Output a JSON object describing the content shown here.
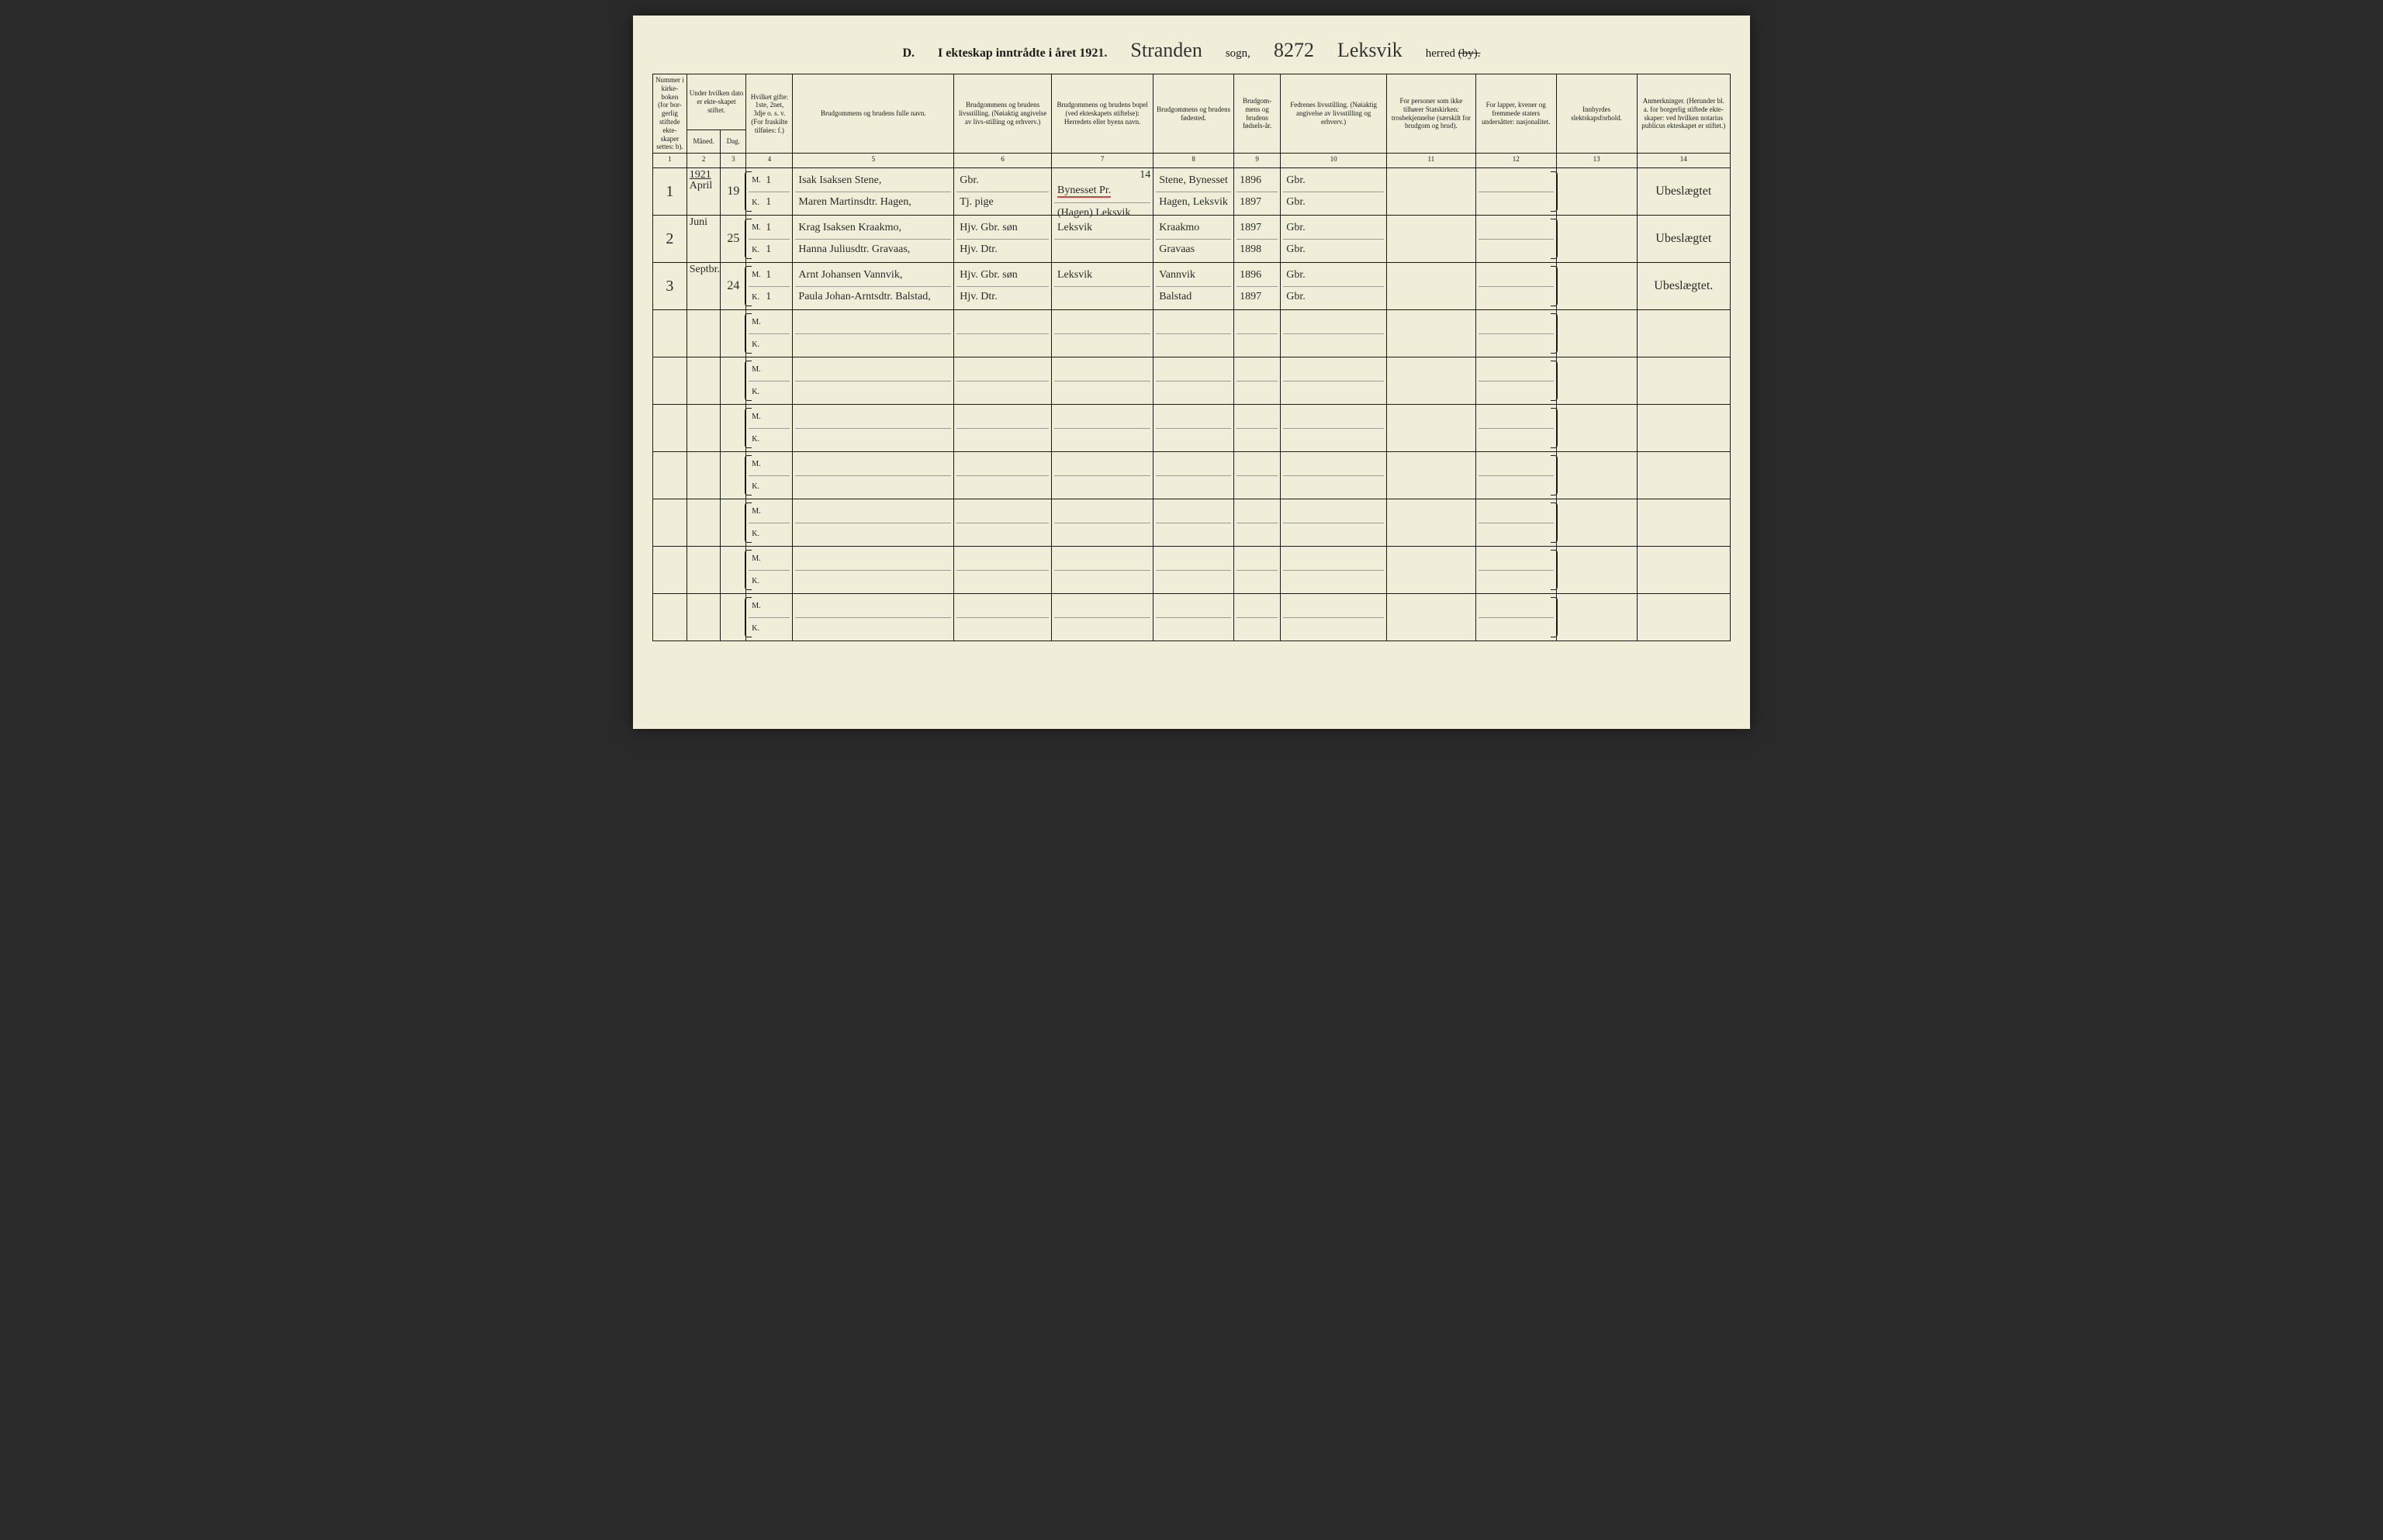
{
  "title": {
    "section_letter": "D.",
    "printed": "I ekteskap inntrådte i året 192",
    "year_suffix": "1.",
    "sogn_name": "Stranden",
    "sogn_label": "sogn,",
    "page_number": "8272",
    "herred_name": "Leksvik",
    "herred_label": "herred",
    "by_label": "(by)."
  },
  "columns": {
    "c1": "Nummer i kirke-boken (for bor-gerlig stiftede ekte-skaper settes: b).",
    "c2": "Under hvilken dato er ekte-skapet stiftet.",
    "c2a": "Måned.",
    "c2b": "Dag.",
    "c3": "Hvilket gifte: 1ste, 2net, 3dje o. s. v. (For fraskilte tilføies: f.)",
    "c4": "Brudgommens og brudens fulle navn.",
    "c5": "Brudgommens og brudens livsstilling. (Nøiaktig angivelse av livs-stilling og erhverv.)",
    "c6": "Brudgommens og brudens bopel (ved ekteskapets stiftelse): Herredets eller byens navn.",
    "c7": "Brudgommens og brudens fødested.",
    "c8": "Brudgom-mens og brudens fødsels-år.",
    "c9": "Fedrenes livsstilling. (Nøiaktig angivelse av livsstilling og erhverv.)",
    "c10": "For personer som ikke tilhører Statskirken: trosbekjennelse (særskilt for brudgom og brud).",
    "c11": "For lapper, kvener og fremmede staters undersåtter: nasjonalitet.",
    "c12": "Innbyrdes slektskapsforhold.",
    "c13": "Anmerkninger. (Herunder bl. a. for borgerlig stiftede ekte-skaper: ved hvilken notarius publicus ekteskapet er stiftet.)"
  },
  "colnums": [
    "1",
    "2",
    "3",
    "4",
    "5",
    "6",
    "7",
    "8",
    "9",
    "10",
    "11",
    "12",
    "13",
    "14"
  ],
  "rows": [
    {
      "num": "1",
      "year_note": "1921",
      "month": "April",
      "day": "19",
      "m_gifte": "1",
      "k_gifte": "1",
      "m_name": "Isak Isaksen Stene,",
      "k_name": "Maren Martinsdtr. Hagen,",
      "m_livs": "Gbr.",
      "k_livs": "Tj. pige",
      "c6_note": "14",
      "m_bopel": "Bynesset Pr.",
      "k_bopel": "(Hagen) Leksvik",
      "m_fodested": "Stene, Bynesset",
      "k_fodested": "Hagen, Leksvik",
      "m_year": "1896",
      "k_year": "1897",
      "m_fedre": "Gbr.",
      "k_fedre": "Gbr.",
      "anm": "Ubeslægtet"
    },
    {
      "num": "2",
      "month": "Juni",
      "day": "25",
      "m_gifte": "1",
      "k_gifte": "1",
      "m_name": "Krag Isaksen Kraakmo,",
      "k_name": "Hanna Juliusdtr. Gravaas,",
      "m_livs": "Hjv. Gbr. søn",
      "k_livs": "Hjv. Dtr.",
      "m_bopel": "Leksvik",
      "k_bopel": "",
      "m_fodested": "Kraakmo",
      "k_fodested": "Gravaas",
      "m_year": "1897",
      "k_year": "1898",
      "m_fedre": "Gbr.",
      "k_fedre": "Gbr.",
      "anm": "Ubeslægtet"
    },
    {
      "num": "3",
      "month": "Septbr.",
      "day": "24",
      "m_gifte": "1",
      "k_gifte": "1",
      "m_name": "Arnt Johansen Vannvik,",
      "k_name": "Paula Johan-Arntsdtr. Balstad,",
      "m_livs": "Hjv. Gbr. søn",
      "k_livs": "Hjv. Dtr.",
      "m_bopel": "Leksvik",
      "k_bopel": "",
      "m_fodested": "Vannvik",
      "k_fodested": "Balstad",
      "m_year": "1896",
      "k_year": "1897",
      "m_fedre": "Gbr.",
      "k_fedre": "Gbr.",
      "anm": "Ubeslægtet."
    },
    {},
    {},
    {},
    {},
    {},
    {},
    {}
  ],
  "mk": {
    "m": "M.",
    "k": "K."
  },
  "widths": {
    "c1": 40,
    "c2a": 40,
    "c2b": 30,
    "c3": 55,
    "c4": 190,
    "c5": 115,
    "c6": 120,
    "c7": 95,
    "c8": 55,
    "c9": 125,
    "c10": 105,
    "c11": 95,
    "c12": 95,
    "c13": 110
  },
  "styles": {
    "background_color": "#f0eed8",
    "border_color": "#1a1a1a",
    "handwriting_color": "#2a2a2a",
    "header_fontsize": 9,
    "handwriting_fontsize": 16
  }
}
